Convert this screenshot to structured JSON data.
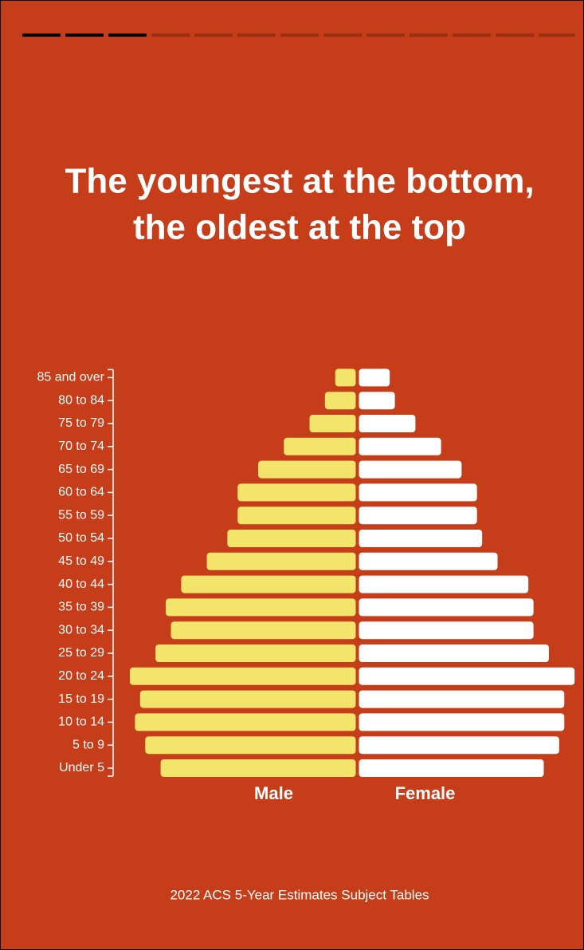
{
  "chart_data": {
    "type": "pyramid",
    "title": [
      "The youngest at the bottom,",
      "the oldest at the top"
    ],
    "categories": [
      "Under 5",
      "5 to 9",
      "10 to 14",
      "15 to 19",
      "20 to 24",
      "25 to 29",
      "30 to 34",
      "35 to 39",
      "40 to 44",
      "45 to 49",
      "50 to 54",
      "55 to 59",
      "60 to 64",
      "65 to 69",
      "70 to 74",
      "75 to 79",
      "80 to 84",
      "85 and over"
    ],
    "series": [
      {
        "name": "Male",
        "color": "#f3e46b",
        "values": [
          3.8,
          4.1,
          4.3,
          4.2,
          4.4,
          3.9,
          3.6,
          3.7,
          3.4,
          2.9,
          2.5,
          2.3,
          2.3,
          1.9,
          1.4,
          0.9,
          0.6,
          0.4
        ]
      },
      {
        "name": "Female",
        "color": "#ffffff",
        "values": [
          3.6,
          3.9,
          4.0,
          4.0,
          4.2,
          3.7,
          3.4,
          3.4,
          3.3,
          2.7,
          2.4,
          2.3,
          2.3,
          2.0,
          1.6,
          1.1,
          0.7,
          0.6
        ]
      }
    ],
    "xlim": [
      0,
      4.5
    ],
    "source": "2022 ACS 5-Year Estimates Subject Tables"
  }
}
